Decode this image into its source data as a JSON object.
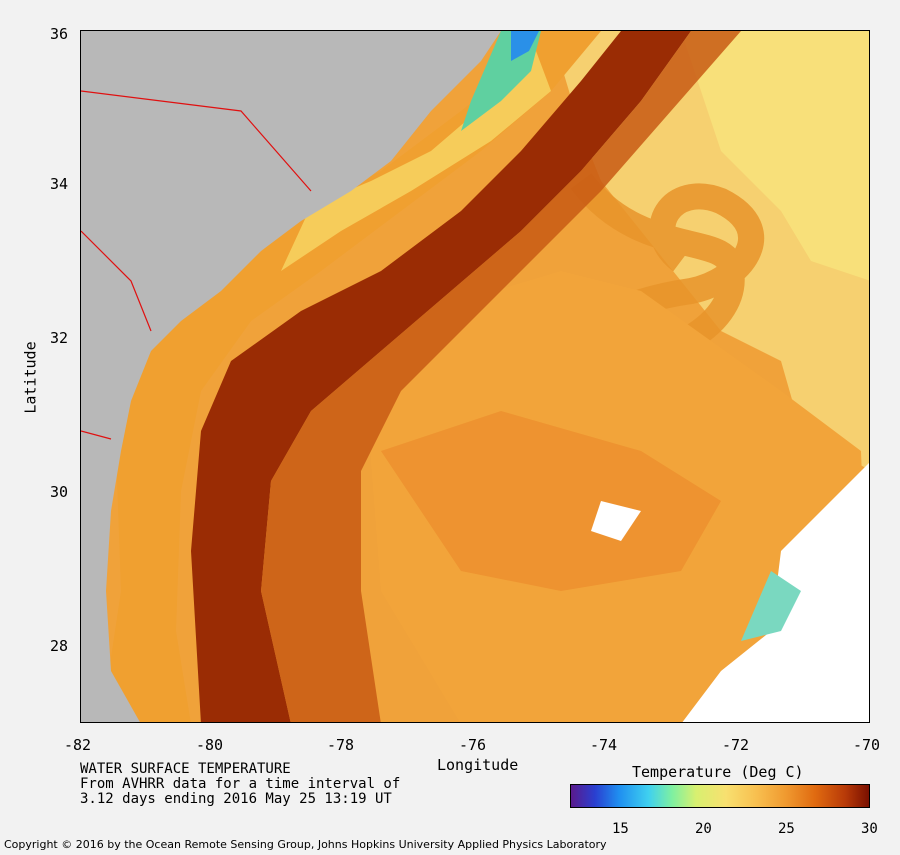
{
  "map": {
    "x_ticks": [
      "-82",
      "-80",
      "-78",
      "-76",
      "-74",
      "-72",
      "-70"
    ],
    "y_ticks": [
      "36",
      "34",
      "32",
      "30",
      "28"
    ],
    "xlabel": "Longitude",
    "ylabel": "Latitude",
    "lon_range": [
      -82,
      -70
    ],
    "lat_range": [
      27,
      36
    ],
    "colors": {
      "land": "#b8b8b8",
      "state_border": "#e01010",
      "gulf_stream_core": "#9a2c04",
      "warm_water": "#e88a20",
      "mid_water": "#f4a83a",
      "cool_water": "#f6d86a",
      "shelf_water": "#f8ea80",
      "cloud": "#ffffff"
    }
  },
  "caption": {
    "line1": "WATER SURFACE TEMPERATURE",
    "line2": "From AVHRR data for a time interval of",
    "line3": "3.12 days ending 2016 May 25 13:19 UT"
  },
  "colorbar": {
    "title": "Temperature (Deg C)",
    "min": 12,
    "max": 30,
    "ticks": [
      "15",
      "20",
      "25",
      "30"
    ]
  },
  "copyright": "Copyright © 2016 by the Ocean Remote Sensing Group, Johns Hopkins University Applied Physics Laboratory"
}
